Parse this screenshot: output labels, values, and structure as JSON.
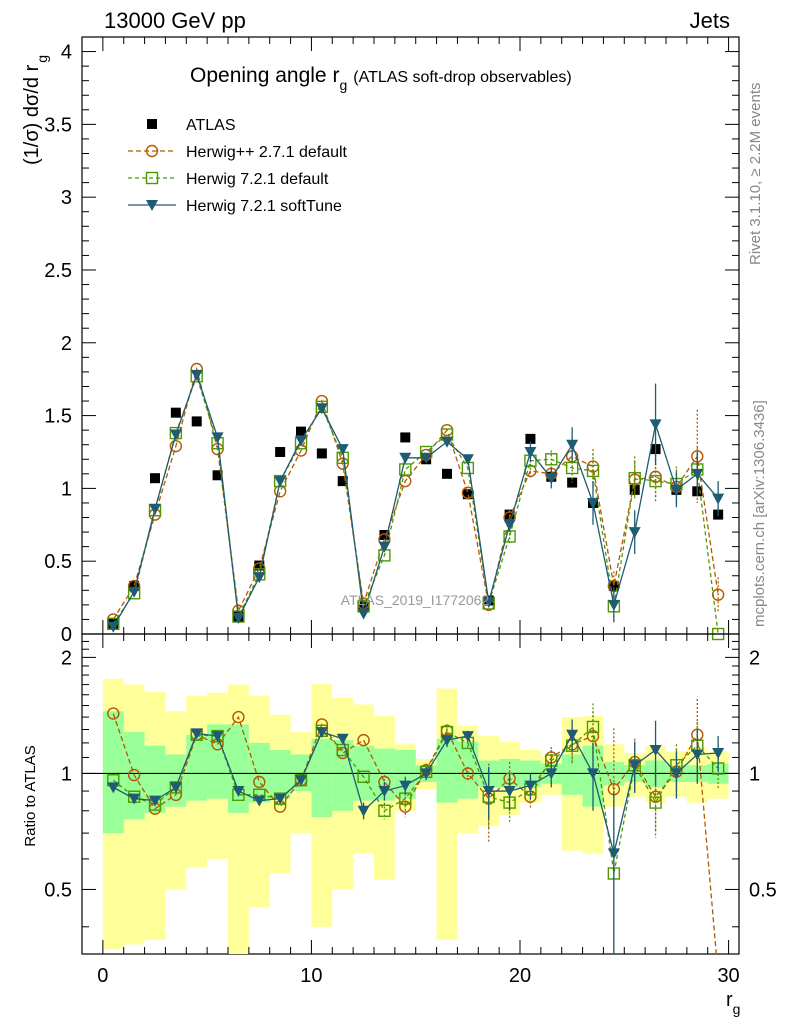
{
  "header": {
    "left": "13000 GeV pp",
    "right": "Jets"
  },
  "side_labels": {
    "top": "Rivet 3.1.10, ≥ 2.2M events",
    "bottom": "mcplots.cern.ch [arXiv:1306.3436]"
  },
  "watermark": "ATLAS_2019_I1772062",
  "chart_data": [
    {
      "type": "line",
      "title": {
        "main": "Opening angle r",
        "sub": "g",
        "suffix": "(ATLAS soft-drop observables)"
      },
      "ylabel": {
        "main": "(1/σ) dσ/d r",
        "sub": "g"
      },
      "xlim": [
        -1,
        30.5
      ],
      "ylim": [
        0,
        4.1
      ],
      "yticks": [
        0,
        0.5,
        1,
        1.5,
        2,
        2.5,
        3,
        3.5,
        4
      ],
      "ytick_labels": [
        "0",
        "0.5",
        "1",
        "1.5",
        "2",
        "2.5",
        "3",
        "3.5",
        "4"
      ],
      "legend_position": "top-left",
      "x": [
        0.5,
        1.5,
        2.5,
        3.5,
        4.5,
        5.5,
        6.5,
        7.5,
        8.5,
        9.5,
        10.5,
        11.5,
        12.5,
        13.5,
        14.5,
        15.5,
        16.5,
        17.5,
        18.5,
        19.5,
        20.5,
        21.5,
        22.5,
        23.5,
        24.5,
        25.5,
        26.5,
        27.5,
        28.5,
        29.5
      ],
      "series": [
        {
          "name": "ATLAS",
          "style": "data",
          "color": "#000000",
          "values": [
            0.07,
            0.33,
            1.07,
            1.52,
            1.46,
            1.09,
            0.12,
            0.47,
            1.25,
            1.39,
            1.24,
            1.05,
            0.19,
            0.68,
            1.35,
            1.2,
            1.1,
            0.96,
            0.23,
            0.82,
            1.34,
            1.08,
            1.04,
            0.9,
            0.33,
            0.99,
            1.27,
            0.99,
            0.98,
            0.82
          ]
        },
        {
          "name": "Herwig++ 2.7.1 default",
          "style": "circle",
          "color": "#b35900",
          "values": [
            0.1,
            0.33,
            0.82,
            1.29,
            1.82,
            1.27,
            0.16,
            0.45,
            0.98,
            1.26,
            1.6,
            1.17,
            0.21,
            0.65,
            1.05,
            1.23,
            1.4,
            0.97,
            0.2,
            0.8,
            1.12,
            1.1,
            1.22,
            1.15,
            0.33,
            1.06,
            1.08,
            1.01,
            1.22,
            0.27
          ],
          "err": [
            0,
            0,
            0,
            0,
            0,
            0,
            0,
            0,
            0,
            0,
            0,
            0,
            0,
            0,
            0,
            0,
            0,
            0,
            0,
            0.05,
            0.05,
            0.05,
            0.1,
            0.12,
            0.1,
            0.12,
            0.15,
            0.12,
            0.32,
            0.12
          ]
        },
        {
          "name": "Herwig 7.2.1 default",
          "style": "square",
          "color": "#4d9900",
          "values": [
            0.07,
            0.28,
            0.85,
            1.38,
            1.77,
            1.31,
            0.12,
            0.41,
            1.05,
            1.31,
            1.56,
            1.21,
            0.19,
            0.54,
            1.13,
            1.25,
            1.37,
            1.14,
            0.21,
            0.67,
            1.19,
            1.2,
            1.14,
            1.12,
            0.19,
            1.07,
            1.05,
            1.03,
            1.13,
            0.0
          ],
          "err": [
            0,
            0,
            0,
            0,
            0,
            0,
            0,
            0,
            0,
            0,
            0,
            0,
            0,
            0,
            0,
            0,
            0,
            0,
            0,
            0.05,
            0.06,
            0.06,
            0.1,
            0.12,
            0.1,
            0.15,
            0.15,
            0.12,
            0.15,
            0
          ]
        },
        {
          "name": "Herwig 7.2.1 softTune",
          "style": "triangle",
          "color": "#1f5b73",
          "values": [
            0.05,
            0.29,
            0.86,
            1.37,
            1.78,
            1.35,
            0.11,
            0.39,
            1.05,
            1.33,
            1.55,
            1.27,
            0.14,
            0.6,
            1.21,
            1.21,
            1.32,
            1.2,
            0.22,
            0.75,
            1.25,
            1.07,
            1.3,
            0.9,
            0.2,
            0.7,
            1.44,
            0.99,
            1.1,
            0.93
          ],
          "err": [
            0,
            0,
            0,
            0,
            0,
            0,
            0,
            0,
            0,
            0,
            0,
            0,
            0,
            0,
            0,
            0,
            0,
            0,
            0,
            0.05,
            0.07,
            0.07,
            0.12,
            0.15,
            0.12,
            0.15,
            0.28,
            0.12,
            0.15,
            0.12
          ]
        }
      ]
    },
    {
      "type": "line",
      "ylabel": "Ratio to ATLAS",
      "xlabel": {
        "main": "r",
        "sub": "g"
      },
      "xlim": [
        -1,
        30.5
      ],
      "ylim": [
        0.34,
        2.3
      ],
      "yticks": [
        0.5,
        1,
        2
      ],
      "ytick_labels": [
        "0.5",
        "1",
        "2"
      ],
      "xticks": [
        0,
        10,
        20,
        30
      ],
      "xtick_labels": [
        "0",
        "10",
        "20",
        "30"
      ],
      "band_inner": [
        [
          0.7,
          1.45
        ],
        [
          0.76,
          1.28
        ],
        [
          0.79,
          1.18
        ],
        [
          0.82,
          1.12
        ],
        [
          0.85,
          1.26
        ],
        [
          0.86,
          1.34
        ],
        [
          0.79,
          1.34
        ],
        [
          0.84,
          1.2
        ],
        [
          0.86,
          1.15
        ],
        [
          0.9,
          1.12
        ],
        [
          0.77,
          1.23
        ],
        [
          0.8,
          1.22
        ],
        [
          0.85,
          1.18
        ],
        [
          0.85,
          1.16
        ],
        [
          0.86,
          1.15
        ],
        [
          0.95,
          1.05
        ],
        [
          0.84,
          1.23
        ],
        [
          0.86,
          1.21
        ],
        [
          0.92,
          1.08
        ],
        [
          0.92,
          1.09
        ],
        [
          0.92,
          1.08
        ],
        [
          0.94,
          1.06
        ],
        [
          0.88,
          1.12
        ],
        [
          0.82,
          1.18
        ],
        [
          0.93,
          1.07
        ],
        [
          0.95,
          1.05
        ],
        [
          0.92,
          1.08
        ],
        [
          0.95,
          1.05
        ],
        [
          0.95,
          1.05
        ],
        [
          0.94,
          1.06
        ]
      ],
      "band_outer": [
        [
          0.35,
          1.76
        ],
        [
          0.36,
          1.7
        ],
        [
          0.37,
          1.63
        ],
        [
          0.5,
          1.45
        ],
        [
          0.57,
          1.59
        ],
        [
          0.6,
          1.62
        ],
        [
          0.34,
          1.7
        ],
        [
          0.45,
          1.59
        ],
        [
          0.55,
          1.42
        ],
        [
          0.7,
          1.28
        ],
        [
          0.4,
          1.71
        ],
        [
          0.5,
          1.57
        ],
        [
          0.62,
          1.51
        ],
        [
          0.53,
          1.41
        ],
        [
          0.8,
          1.19
        ],
        [
          0.91,
          1.09
        ],
        [
          0.37,
          1.66
        ],
        [
          0.7,
          1.33
        ],
        [
          0.73,
          1.25
        ],
        [
          0.78,
          1.21
        ],
        [
          0.84,
          1.15
        ],
        [
          0.88,
          1.11
        ],
        [
          0.63,
          1.4
        ],
        [
          0.62,
          1.41
        ],
        [
          0.82,
          1.19
        ],
        [
          0.87,
          1.13
        ],
        [
          0.84,
          1.18
        ],
        [
          0.87,
          1.14
        ],
        [
          0.84,
          1.17
        ],
        [
          0.86,
          1.14
        ]
      ],
      "series": [
        {
          "name": "Herwig++ 2.7.1 default",
          "style": "circle",
          "color": "#b35900",
          "values": [
            1.43,
            0.99,
            0.81,
            0.88,
            1.26,
            1.19,
            1.4,
            0.95,
            0.82,
            0.96,
            1.34,
            1.13,
            1.22,
            0.95,
            0.82,
            1.02,
            1.29,
            1.0,
            0.86,
            0.97,
            0.87,
            1.1,
            1.19,
            1.25,
            0.91,
            1.07,
            0.87,
            1.01,
            1.26,
            0.3
          ],
          "err": [
            0,
            0,
            0,
            0,
            0,
            0,
            0,
            0,
            0,
            0,
            0,
            0,
            0,
            0.04,
            0.05,
            0.04,
            0.05,
            0.04,
            0.2,
            0.1,
            0.06,
            0.07,
            0.12,
            0.2,
            0.4,
            0.16,
            0.16,
            0.14,
            0.3,
            0.12
          ]
        },
        {
          "name": "Herwig 7.2.1 default",
          "style": "square",
          "color": "#4d9900",
          "values": [
            0.96,
            0.87,
            0.83,
            0.92,
            1.26,
            1.25,
            0.88,
            0.88,
            0.86,
            0.96,
            1.29,
            1.15,
            0.98,
            0.8,
            0.86,
            1.01,
            1.28,
            1.2,
            0.87,
            0.84,
            0.91,
            1.08,
            1.18,
            1.32,
            0.55,
            1.05,
            0.84,
            1.05,
            1.18,
            1.03
          ],
          "err": [
            0,
            0,
            0,
            0,
            0,
            0,
            0,
            0,
            0,
            0,
            0,
            0,
            0,
            0.04,
            0.05,
            0.04,
            0.05,
            0.04,
            0.15,
            0.1,
            0.06,
            0.07,
            0.12,
            0.2,
            0.3,
            0.16,
            0.16,
            0.14,
            0.18,
            0.12
          ]
        },
        {
          "name": "Herwig 7.2.1 softTune",
          "style": "triangle",
          "color": "#1f5b73",
          "values": [
            0.92,
            0.86,
            0.85,
            0.92,
            1.27,
            1.25,
            0.9,
            0.85,
            0.86,
            0.96,
            1.28,
            1.23,
            0.8,
            0.9,
            0.93,
            1.0,
            1.22,
            1.25,
            0.9,
            0.9,
            0.93,
            1.0,
            1.26,
            1.0,
            0.62,
            1.05,
            1.15,
            1.0,
            1.12,
            1.13
          ],
          "err": [
            0,
            0,
            0,
            0,
            0,
            0,
            0,
            0,
            0,
            0,
            0,
            0,
            0.04,
            0.05,
            0.05,
            0.04,
            0.05,
            0.04,
            0.14,
            0.1,
            0.07,
            0.08,
            0.12,
            0.2,
            0.28,
            0.16,
            0.22,
            0.14,
            0.18,
            0.12
          ]
        }
      ]
    }
  ]
}
